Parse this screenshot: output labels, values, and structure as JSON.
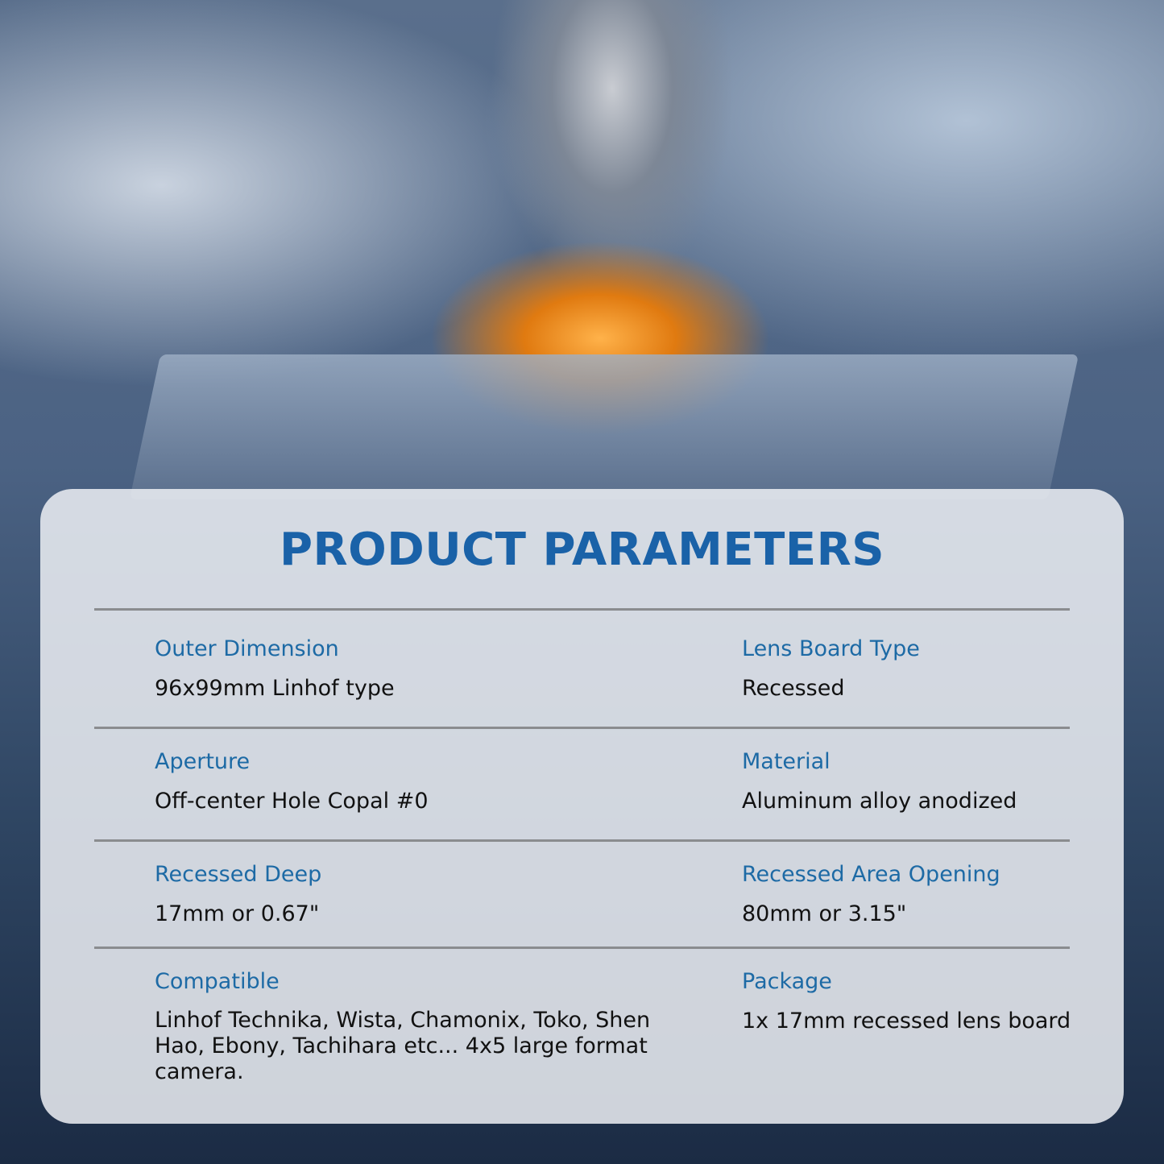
{
  "title": "PRODUCT PARAMETERS",
  "params": [
    {
      "label": "Outer Dimension",
      "value": "96x99mm Linhof type"
    },
    {
      "label": "Lens Board Type",
      "value": "Recessed"
    },
    {
      "label": "Aperture",
      "value": "Off-center Hole Copal #0"
    },
    {
      "label": "Material",
      "value": "Aluminum alloy anodized"
    },
    {
      "label": "Recessed Deep",
      "value": "17mm or 0.67\""
    },
    {
      "label": "Recessed Area Opening",
      "value": "80mm or 3.15\""
    },
    {
      "label": "Compatible",
      "value": "Linhof Technika, Wista, Chamonix, Toko, Shen Hao, Ebony, Tachihara etc... 4x5 large format camera."
    },
    {
      "label": "Package",
      "value": "1x 17mm recessed lens board"
    }
  ],
  "colors": {
    "title": "#1a62a8",
    "label": "#1d6aa5",
    "value": "#111111",
    "divider": "#8a8c8f"
  }
}
